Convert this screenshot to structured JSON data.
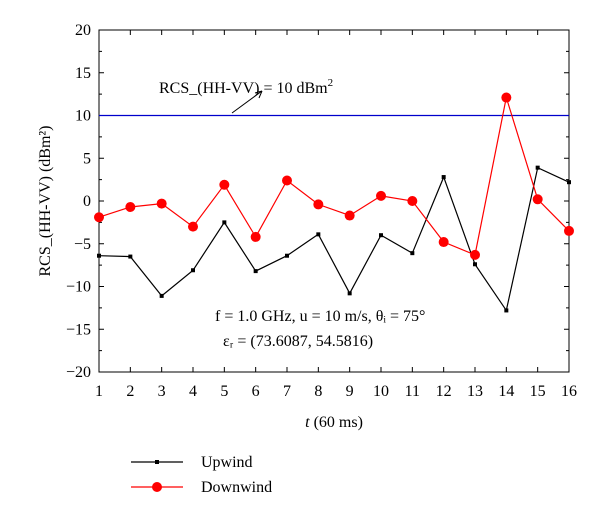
{
  "chart_data": {
    "type": "line",
    "xlabel": "t (60 ms)",
    "ylabel": "RCS_(HH-VV) (dBm²)",
    "xlim": [
      1,
      16
    ],
    "ylim": [
      -20,
      20
    ],
    "x_ticks": [
      1,
      2,
      3,
      4,
      5,
      6,
      7,
      8,
      9,
      10,
      11,
      12,
      13,
      14,
      15,
      16
    ],
    "y_ticks": [
      20,
      15,
      10,
      5,
      0,
      -5,
      -10,
      -15,
      -20
    ],
    "x": [
      1,
      2,
      3,
      4,
      5,
      6,
      7,
      8,
      9,
      10,
      11,
      12,
      13,
      14,
      15,
      16
    ],
    "series": [
      {
        "name": "Upwind",
        "color": "#000000",
        "marker": "square",
        "values": [
          -6.4,
          -6.5,
          -11.1,
          -8.1,
          -2.5,
          -8.2,
          -6.4,
          -3.9,
          -10.8,
          -4.0,
          -6.1,
          2.8,
          -7.4,
          -12.8,
          3.9,
          2.2
        ]
      },
      {
        "name": "Downwind",
        "color": "#ff0000",
        "marker": "circle",
        "values": [
          -1.9,
          -0.7,
          -0.3,
          -3.0,
          1.9,
          -4.2,
          2.4,
          -0.4,
          -1.7,
          0.6,
          0.0,
          -4.8,
          -6.3,
          12.1,
          0.2,
          -3.5
        ]
      }
    ],
    "reference_line": {
      "y": 10,
      "color": "#0000cc"
    },
    "annotations": {
      "ref_label_prefix": "RCS_(HH-VV) = 10 dBm",
      "ref_label_sup": "2",
      "params_line1": "f = 1.0 GHz, u = 10 m/s, θᵢ = 75°",
      "params_line2": "εᵣ = (73.6087, 54.5816)"
    },
    "legend": {
      "position": "bottom-left"
    },
    "grid": false
  }
}
